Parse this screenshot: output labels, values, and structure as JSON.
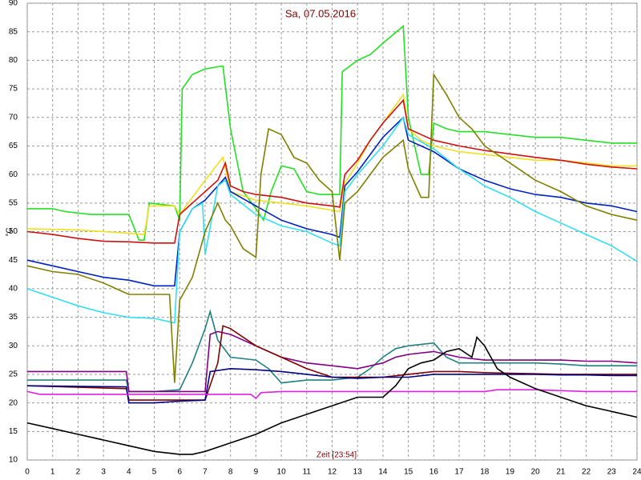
{
  "chart_data": {
    "type": "line",
    "title": "Sa, 07.05.2016",
    "x_label": "Zeit [23:54]",
    "y_label": "°C",
    "xlim": [
      0,
      24
    ],
    "xticks": [
      0,
      1,
      2,
      3,
      4,
      5,
      6,
      7,
      8,
      9,
      10,
      11,
      12,
      13,
      14,
      15,
      16,
      17,
      18,
      19,
      20,
      21,
      22,
      23,
      24
    ],
    "ylim": [
      10,
      90
    ],
    "yticks": [
      10,
      15,
      20,
      25,
      30,
      35,
      40,
      45,
      50,
      55,
      60,
      65,
      70,
      75,
      80,
      85,
      90
    ],
    "grid": true,
    "series": [
      {
        "color": "#22e022",
        "x": [
          0,
          1,
          1.5,
          2.5,
          4,
          4.4,
          4.6,
          4.8,
          5.8,
          6,
          6.1,
          6.5,
          7,
          7.7,
          8,
          8.5,
          9,
          9.3,
          9.6,
          10,
          10.5,
          11,
          11.5,
          12,
          12.3,
          12.4,
          13,
          13.5,
          14,
          14.8,
          15,
          15.5,
          15.8,
          16,
          16.5,
          17,
          18,
          19,
          20,
          21,
          22,
          23,
          24
        ],
        "values": [
          54,
          54,
          53.5,
          53,
          53,
          48.5,
          48.5,
          55,
          54.5,
          52,
          75,
          77.5,
          78.5,
          79,
          68,
          57,
          54,
          52,
          57,
          61.5,
          61,
          57,
          56.5,
          56.5,
          56.5,
          78,
          80,
          81,
          83,
          86,
          70,
          60,
          60,
          69,
          68,
          67.5,
          67.5,
          67,
          66.5,
          66.5,
          66,
          65.5,
          65.5
        ]
      },
      {
        "color": "#f0e020",
        "x": [
          0,
          2,
          4,
          4.6,
          4.8,
          5.8,
          6,
          6.5,
          7,
          7.7,
          8,
          9,
          10,
          11,
          12.3,
          12.5,
          13,
          13.5,
          14,
          14.8,
          15,
          15.5,
          16,
          17,
          18,
          19,
          20,
          21,
          22,
          23,
          24
        ],
        "values": [
          50.5,
          50.3,
          49.7,
          49.5,
          54.5,
          54.5,
          53,
          56,
          59,
          63,
          57,
          55.5,
          55,
          54.5,
          53.5,
          58.5,
          62,
          66,
          69,
          74,
          68,
          66,
          65,
          64,
          63.5,
          63,
          62.5,
          62.5,
          62,
          61.5,
          61.5
        ]
      },
      {
        "color": "#d01010",
        "x": [
          0,
          1,
          2,
          3,
          4,
          5,
          5.8,
          6,
          6.5,
          7,
          7.5,
          7.8,
          8,
          8.5,
          9,
          10,
          11,
          12,
          12.3,
          12.5,
          13,
          13.5,
          14,
          14.8,
          15,
          15.5,
          16,
          17,
          18,
          19,
          20,
          21,
          22,
          23,
          24
        ],
        "values": [
          50,
          49.5,
          48.8,
          48.3,
          48.2,
          48,
          48,
          53,
          55,
          57,
          59,
          62,
          58,
          57,
          56.5,
          56,
          55,
          54.5,
          54.3,
          60,
          62.5,
          66,
          69,
          73,
          68,
          67,
          66,
          65,
          64.2,
          63.6,
          63,
          62.5,
          61.8,
          61.3,
          61
        ]
      },
      {
        "color": "#0020c0",
        "x": [
          0,
          1,
          2,
          3,
          4,
          5,
          5.8,
          6,
          6.5,
          7,
          7.5,
          7.8,
          8,
          9,
          10,
          11,
          12,
          12.3,
          12.5,
          13,
          13.5,
          14,
          14.8,
          15,
          15.5,
          16,
          17,
          18,
          19,
          20,
          21,
          22,
          23,
          24
        ],
        "values": [
          45,
          44,
          43,
          42,
          41.5,
          40.5,
          40.5,
          50,
          54,
          55.5,
          58,
          59.5,
          57,
          54.5,
          52,
          50.5,
          49.5,
          49,
          58,
          60.5,
          63.5,
          66.5,
          70,
          66,
          65,
          64,
          61,
          59,
          57.5,
          56.5,
          56,
          55,
          54.5,
          53.5
        ]
      },
      {
        "color": "#30e0f0",
        "x": [
          0,
          1,
          2,
          3,
          4,
          5,
          5.8,
          6,
          6.5,
          6.9,
          7,
          7.5,
          7.8,
          8,
          9,
          10,
          11,
          12,
          12.3,
          12.5,
          13,
          14,
          14.8,
          15,
          16,
          17,
          18,
          19,
          20,
          21,
          22,
          23,
          24
        ],
        "values": [
          40,
          38.5,
          37,
          35.8,
          35,
          34.8,
          34,
          50,
          54,
          55,
          46,
          58,
          59,
          56.5,
          53,
          51,
          50,
          48,
          47.5,
          57,
          60,
          65,
          70,
          67,
          64.5,
          61,
          58,
          56,
          53.5,
          51.5,
          49.5,
          47.5,
          44.8
        ]
      },
      {
        "color": "#808000",
        "x": [
          0,
          1,
          2,
          3,
          3.5,
          4,
          5,
          5.6,
          5.8,
          6,
          6.5,
          7,
          7.5,
          7.8,
          8,
          8.5,
          9,
          9.2,
          9.5,
          10,
          10.5,
          11,
          11.5,
          12,
          12.3,
          12.5,
          13,
          13.5,
          14,
          14.8,
          15,
          15.5,
          15.8,
          16,
          16.5,
          17,
          17.5,
          18,
          19,
          20,
          21,
          22,
          23,
          24
        ],
        "values": [
          44,
          43,
          42.5,
          41,
          40,
          39,
          39,
          39,
          23.5,
          38,
          42,
          50,
          55,
          52,
          51,
          47,
          45.5,
          60,
          68,
          67,
          63,
          62,
          59,
          57,
          45,
          55,
          57,
          60,
          63,
          66,
          61,
          56,
          56,
          77.5,
          74,
          70,
          68,
          65,
          62,
          59,
          57,
          54.5,
          53,
          52
        ]
      },
      {
        "color": "#208080",
        "x": [
          0,
          3.9,
          4,
          5,
          6,
          6.5,
          7,
          7.2,
          7.5,
          8,
          9,
          9.5,
          10,
          11,
          12,
          13,
          13.5,
          14,
          14.5,
          15,
          16,
          16.5,
          17,
          18,
          19,
          20,
          21,
          22,
          23,
          24
        ],
        "values": [
          24,
          24,
          22,
          22,
          22.3,
          27,
          33,
          36,
          31,
          28,
          27.5,
          26,
          23.5,
          24,
          24,
          24.5,
          26,
          28,
          29.5,
          30,
          30.5,
          28,
          27,
          27,
          27,
          27,
          26.8,
          26.5,
          26.5,
          26.5
        ]
      },
      {
        "color": "#800080",
        "x": [
          0,
          1,
          2,
          3,
          3.9,
          4,
          5,
          6,
          7,
          7.2,
          7.5,
          8,
          9,
          10,
          11,
          12,
          13,
          14,
          14.5,
          15,
          16,
          16.5,
          17,
          18,
          19,
          20,
          21,
          22,
          23,
          24
        ],
        "values": [
          25.5,
          25.5,
          25.5,
          25.5,
          25.5,
          22,
          22,
          22,
          22,
          32,
          32.5,
          32,
          30,
          28,
          27,
          26.5,
          26,
          27,
          28,
          28.5,
          29,
          28.5,
          28,
          27.5,
          27.5,
          27.5,
          27.5,
          27.3,
          27.3,
          27
        ]
      },
      {
        "color": "#800000",
        "x": [
          0,
          3.9,
          4,
          5,
          6,
          7,
          7.5,
          7.7,
          8,
          9,
          10,
          11,
          12,
          13,
          14,
          15,
          16,
          17,
          18,
          19,
          20,
          21,
          22,
          23,
          24
        ],
        "values": [
          23,
          22.5,
          20.5,
          20.5,
          20.5,
          20.5,
          27,
          33.5,
          33,
          30,
          28,
          26,
          24.5,
          24.5,
          24.5,
          25,
          25.5,
          25.5,
          25.3,
          25.2,
          25.1,
          25,
          25,
          25,
          25
        ]
      },
      {
        "color": "#000080",
        "x": [
          0,
          3.9,
          4,
          5,
          6,
          7,
          7.2,
          8,
          9,
          10,
          11,
          12,
          13,
          14,
          15,
          16,
          17,
          18,
          19,
          20,
          21,
          22,
          23,
          24
        ],
        "values": [
          23,
          22.8,
          20,
          20,
          20.3,
          20.5,
          25.5,
          26,
          25.8,
          25.5,
          25,
          24.5,
          24.3,
          24.5,
          24.5,
          25,
          25,
          25,
          25,
          25,
          24.9,
          24.9,
          24.8,
          24.8
        ]
      },
      {
        "color": "#e020e0",
        "x": [
          0,
          0.5,
          2,
          4,
          6,
          8,
          8.8,
          9,
          9.2,
          10,
          12,
          14,
          16,
          18,
          18.5,
          20,
          22,
          24
        ],
        "values": [
          22,
          21.5,
          21.5,
          21.5,
          21.5,
          21.5,
          21.5,
          20.8,
          21.8,
          22,
          22,
          22,
          22,
          22,
          22.3,
          22.3,
          22,
          22
        ]
      },
      {
        "color": "#000000",
        "x": [
          0,
          1,
          2,
          3,
          4,
          5,
          6,
          6.5,
          7,
          8,
          9,
          10,
          11,
          12,
          13,
          14,
          14.5,
          15,
          15.5,
          16,
          16.5,
          17,
          17.5,
          17.7,
          18,
          18.5,
          19,
          19.5,
          20,
          21,
          22,
          23,
          24
        ],
        "values": [
          16.5,
          15.5,
          14.5,
          13.5,
          12.5,
          11.5,
          11,
          11,
          11.5,
          13,
          14.5,
          16.5,
          18,
          19.5,
          21,
          21,
          23,
          26,
          27,
          27.5,
          29,
          29.5,
          28,
          31.5,
          30,
          26,
          24.5,
          23.5,
          22.5,
          21,
          19.5,
          18.5,
          17.5
        ]
      }
    ]
  }
}
